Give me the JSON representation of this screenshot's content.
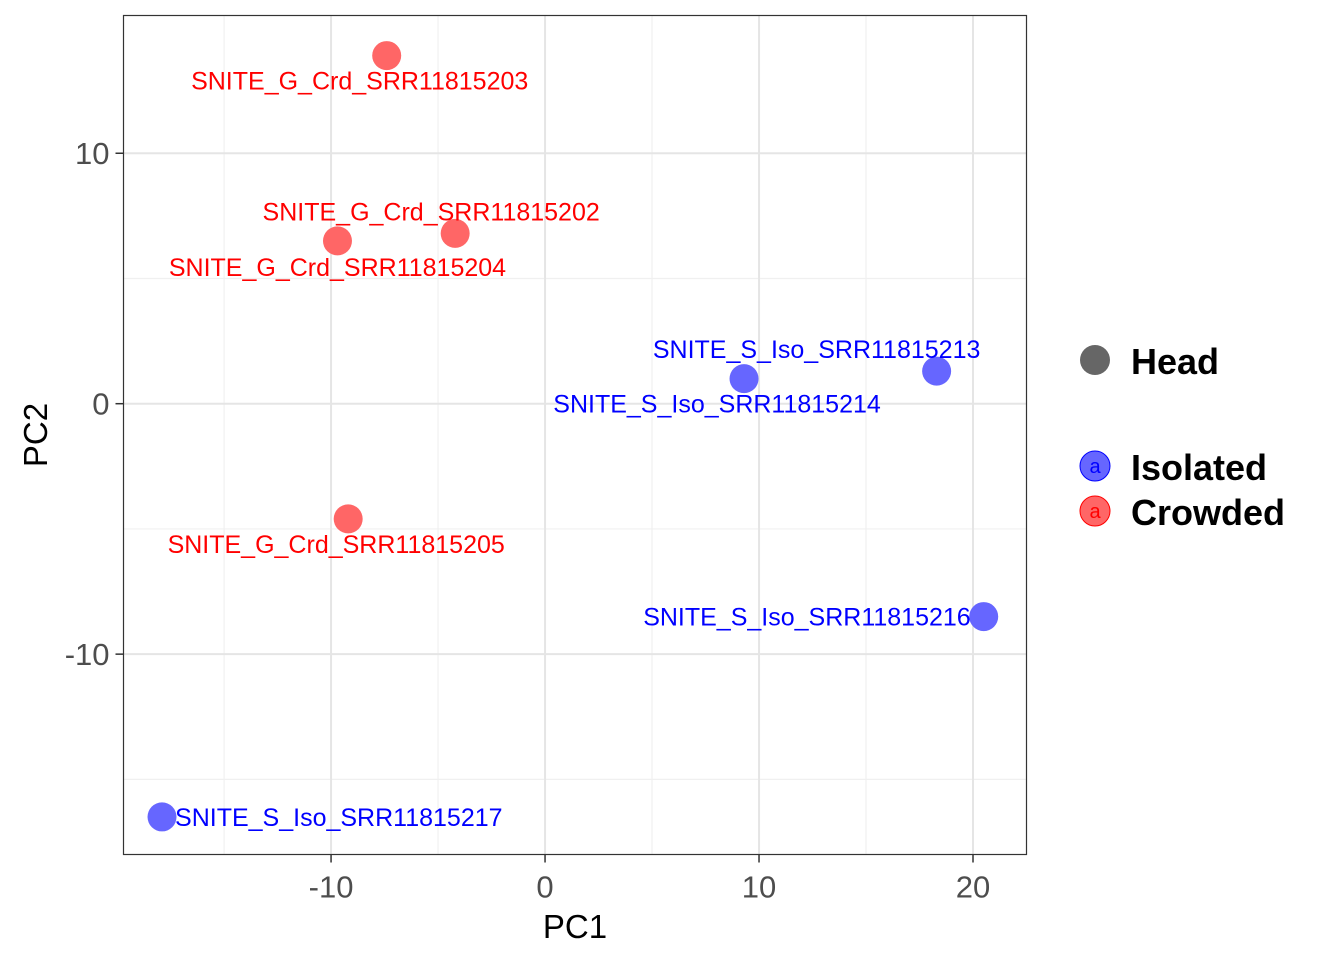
{
  "chart_data": {
    "type": "scatter",
    "xlabel": "PC1",
    "ylabel": "PC2",
    "xlim": [
      -19.7,
      22.5
    ],
    "ylim": [
      -18,
      15.5
    ],
    "x_ticks": [
      -10,
      0,
      10,
      20
    ],
    "y_ticks": [
      -10,
      0,
      10
    ],
    "x_tick_labels": [
      "-10",
      "0",
      "10",
      "20"
    ],
    "y_tick_labels": [
      "-10",
      "0",
      "10"
    ],
    "grid": true,
    "colors": {
      "Isolated": "#6666ff",
      "Crowded": "#ff6666",
      "Isolated_text": "#0000ff",
      "Crowded_text": "#ff0000",
      "Head": "#666666"
    },
    "points": [
      {
        "label": "SNITE_G_Crd_SRR11815203",
        "x": -7.4,
        "y": 13.9,
        "group": "Crowded"
      },
      {
        "label": "SNITE_G_Crd_SRR11815202",
        "x": -4.2,
        "y": 6.8,
        "group": "Crowded"
      },
      {
        "label": "SNITE_G_Crd_SRR11815204",
        "x": -9.7,
        "y": 6.5,
        "group": "Crowded"
      },
      {
        "label": "SNITE_G_Crd_SRR11815205",
        "x": -9.2,
        "y": -4.6,
        "group": "Crowded"
      },
      {
        "label": "SNITE_S_Iso_SRR11815213",
        "x": 18.3,
        "y": 1.3,
        "group": "Isolated"
      },
      {
        "label": "SNITE_S_Iso_SRR11815214",
        "x": 9.3,
        "y": 1.0,
        "group": "Isolated"
      },
      {
        "label": "SNITE_S_Iso_SRR11815216",
        "x": 20.5,
        "y": -8.5,
        "group": "Isolated"
      },
      {
        "label": "SNITE_S_Iso_SRR11815217",
        "x": -17.9,
        "y": -16.5,
        "group": "Isolated"
      }
    ],
    "legend": {
      "position": "right",
      "shape": {
        "label": "Head"
      },
      "color": [
        {
          "label": "Isolated",
          "key": "a"
        },
        {
          "label": "Crowded",
          "key": "a"
        }
      ]
    }
  }
}
